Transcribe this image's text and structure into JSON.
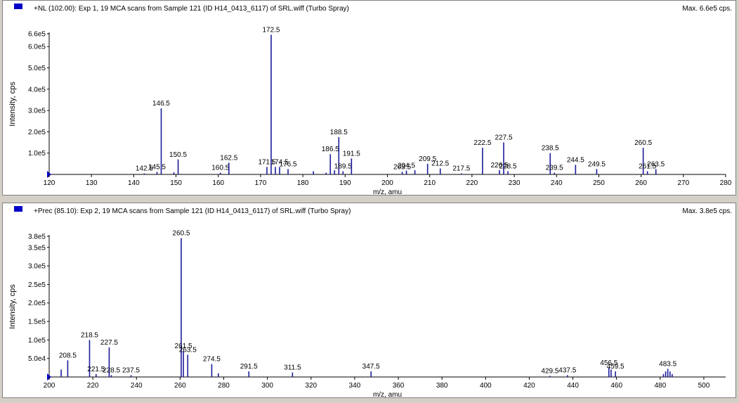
{
  "colors": {
    "peak": "#1c1c9c",
    "axis": "#000000",
    "marker": "#0000c8",
    "background": "#ffffff",
    "frame": "#d4d0c8"
  },
  "chart_data": [
    {
      "type": "bar",
      "title": "+NL (102.00): Exp 1, 19 MCA scans from Sample 121 (ID H14_0413_6117) of SRL.wiff (Turbo Spray)",
      "max_label": "Max. 6.6e5 cps.",
      "xlabel": "m/z, amu",
      "ylabel": "Intensity, cps",
      "xlim": [
        120,
        280
      ],
      "ylim": [
        0,
        660000
      ],
      "x_ticks": [
        120,
        130,
        140,
        150,
        160,
        170,
        180,
        190,
        200,
        210,
        220,
        230,
        240,
        250,
        260,
        270,
        280
      ],
      "y_ticks": [
        {
          "value": 100000,
          "label": "1.0e5"
        },
        {
          "value": 200000,
          "label": "2.0e5"
        },
        {
          "value": 300000,
          "label": "3.0e5"
        },
        {
          "value": 400000,
          "label": "4.0e5"
        },
        {
          "value": 500000,
          "label": "5.0e5"
        },
        {
          "value": 600000,
          "label": "6.0e5"
        },
        {
          "value": 660000,
          "label": "6.6e5"
        }
      ],
      "peaks": [
        {
          "x": 142.5,
          "y": 5000,
          "label": "142.5"
        },
        {
          "x": 145.5,
          "y": 12000,
          "label": "145.5"
        },
        {
          "x": 146.5,
          "y": 310000,
          "label": "146.5"
        },
        {
          "x": 149.5,
          "y": 10000
        },
        {
          "x": 150.5,
          "y": 70000,
          "label": "150.5"
        },
        {
          "x": 160.5,
          "y": 8000,
          "label": "160.5"
        },
        {
          "x": 162.5,
          "y": 55000,
          "label": "162.5"
        },
        {
          "x": 171.5,
          "y": 35000,
          "label": "171.5"
        },
        {
          "x": 172.5,
          "y": 655000,
          "label": "172.5"
        },
        {
          "x": 173.5,
          "y": 35000
        },
        {
          "x": 174.5,
          "y": 35000,
          "label": "174.5"
        },
        {
          "x": 176.5,
          "y": 25000,
          "label": "176.5"
        },
        {
          "x": 182.5,
          "y": 15000
        },
        {
          "x": 185.5,
          "y": 8000
        },
        {
          "x": 186.5,
          "y": 95000,
          "label": "186.5"
        },
        {
          "x": 187.5,
          "y": 20000
        },
        {
          "x": 188.5,
          "y": 175000,
          "label": "188.5"
        },
        {
          "x": 189.5,
          "y": 15000,
          "label": "189.5"
        },
        {
          "x": 191.5,
          "y": 75000,
          "label": "191.5"
        },
        {
          "x": 203.5,
          "y": 12000,
          "label": "203.5"
        },
        {
          "x": 204.5,
          "y": 18000,
          "label": "204.5"
        },
        {
          "x": 206.5,
          "y": 20000
        },
        {
          "x": 209.5,
          "y": 50000,
          "label": "209.5"
        },
        {
          "x": 212.5,
          "y": 28000,
          "label": "212.5"
        },
        {
          "x": 217.5,
          "y": 5000,
          "label": "217.5"
        },
        {
          "x": 222.5,
          "y": 125000,
          "label": "222.5"
        },
        {
          "x": 226.5,
          "y": 20000,
          "label": "226.5"
        },
        {
          "x": 227.5,
          "y": 150000,
          "label": "227.5"
        },
        {
          "x": 228.5,
          "y": 15000,
          "label": "228.5"
        },
        {
          "x": 238.5,
          "y": 100000,
          "label": "238.5"
        },
        {
          "x": 239.5,
          "y": 8000,
          "label": "239.5"
        },
        {
          "x": 244.5,
          "y": 45000,
          "label": "244.5"
        },
        {
          "x": 249.5,
          "y": 25000,
          "label": "249.5"
        },
        {
          "x": 260.5,
          "y": 125000,
          "label": "260.5"
        },
        {
          "x": 261.5,
          "y": 15000,
          "label": "261.5"
        },
        {
          "x": 263.5,
          "y": 25000,
          "label": "263.5"
        }
      ]
    },
    {
      "type": "bar",
      "title": "+Prec (85.10): Exp 2, 19 MCA scans from Sample 121 (ID H14_0413_6117) of SRL.wiff (Turbo Spray)",
      "max_label": "Max. 3.8e5 cps.",
      "xlabel": "m/z, amu",
      "ylabel": "Intensity, cps",
      "xlim": [
        200,
        510
      ],
      "ylim": [
        0,
        380000
      ],
      "x_ticks": [
        200,
        220,
        240,
        260,
        280,
        300,
        320,
        340,
        360,
        380,
        400,
        420,
        440,
        460,
        480,
        500
      ],
      "y_ticks": [
        {
          "value": 50000,
          "label": "5.0e4"
        },
        {
          "value": 100000,
          "label": "1.0e5"
        },
        {
          "value": 150000,
          "label": "1.5e5"
        },
        {
          "value": 200000,
          "label": "2.0e5"
        },
        {
          "value": 250000,
          "label": "2.5e5"
        },
        {
          "value": 300000,
          "label": "3.0e5"
        },
        {
          "value": 350000,
          "label": "3.5e5"
        },
        {
          "value": 380000,
          "label": "3.8e5"
        }
      ],
      "peaks": [
        {
          "x": 205.5,
          "y": 20000
        },
        {
          "x": 208.5,
          "y": 45000,
          "label": "208.5"
        },
        {
          "x": 218.5,
          "y": 100000,
          "label": "218.5"
        },
        {
          "x": 221.5,
          "y": 8000,
          "label": "221.5"
        },
        {
          "x": 227.5,
          "y": 80000,
          "label": "227.5"
        },
        {
          "x": 228.5,
          "y": 5000,
          "label": "228.5"
        },
        {
          "x": 237.5,
          "y": 5000,
          "label": "237.5"
        },
        {
          "x": 260.5,
          "y": 375000,
          "label": "260.5"
        },
        {
          "x": 261.5,
          "y": 70000,
          "label": "261.5"
        },
        {
          "x": 263.5,
          "y": 60000,
          "label": "263.5"
        },
        {
          "x": 274.5,
          "y": 35000,
          "label": "274.5"
        },
        {
          "x": 277.5,
          "y": 10000
        },
        {
          "x": 291.5,
          "y": 15000,
          "label": "291.5"
        },
        {
          "x": 311.5,
          "y": 12000,
          "label": "311.5"
        },
        {
          "x": 347.5,
          "y": 15000,
          "label": "347.5"
        },
        {
          "x": 429.5,
          "y": 3000,
          "label": "429.5"
        },
        {
          "x": 437.5,
          "y": 5000,
          "label": "437.5"
        },
        {
          "x": 456.5,
          "y": 25000,
          "label": "456.5"
        },
        {
          "x": 457.5,
          "y": 20000
        },
        {
          "x": 459.5,
          "y": 15000,
          "label": "459.5"
        },
        {
          "x": 481.5,
          "y": 8000
        },
        {
          "x": 482.5,
          "y": 15000
        },
        {
          "x": 483.5,
          "y": 22000,
          "label": "483.5"
        },
        {
          "x": 484.5,
          "y": 15000
        },
        {
          "x": 485.5,
          "y": 8000
        }
      ]
    }
  ]
}
